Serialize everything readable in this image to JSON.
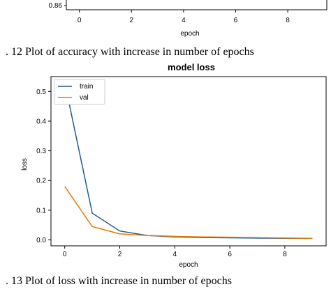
{
  "captions": {
    "fig12": ". 12  Plot of accuracy with increase in number of epochs",
    "fig13": ". 13 Plot of loss with increase in number of epochs"
  },
  "colors": {
    "train": "#1f5a96",
    "val": "#e07b00",
    "axis": "#000000"
  },
  "top_chart": {
    "type": "line",
    "xlabel": "epoch",
    "x_ticks": [
      "0",
      "2",
      "4",
      "6",
      "8"
    ],
    "y_ticks": [
      "0.86"
    ]
  },
  "chart_data": {
    "type": "line",
    "title": "model loss",
    "xlabel": "epoch",
    "ylabel": "loss",
    "xlim": [
      -0.5,
      9.5
    ],
    "ylim": [
      -0.02,
      0.55
    ],
    "x_ticks": [
      0,
      2,
      4,
      6,
      8
    ],
    "y_ticks": [
      0.0,
      0.1,
      0.2,
      0.3,
      0.4,
      0.5
    ],
    "x_tick_labels": [
      "0",
      "2",
      "4",
      "6",
      "8"
    ],
    "y_tick_labels": [
      "0.0",
      "0.1",
      "0.2",
      "0.3",
      "0.4",
      "0.5"
    ],
    "legend_position": "top-left",
    "x": [
      0,
      1,
      2,
      3,
      4,
      5,
      6,
      7,
      8,
      9
    ],
    "series": [
      {
        "name": "train",
        "values": [
          0.53,
          0.09,
          0.03,
          0.015,
          0.01,
          0.008,
          0.007,
          0.006,
          0.005,
          0.005
        ]
      },
      {
        "name": "val",
        "values": [
          0.18,
          0.045,
          0.02,
          0.015,
          0.012,
          0.01,
          0.009,
          0.008,
          0.006,
          0.005
        ]
      }
    ]
  }
}
